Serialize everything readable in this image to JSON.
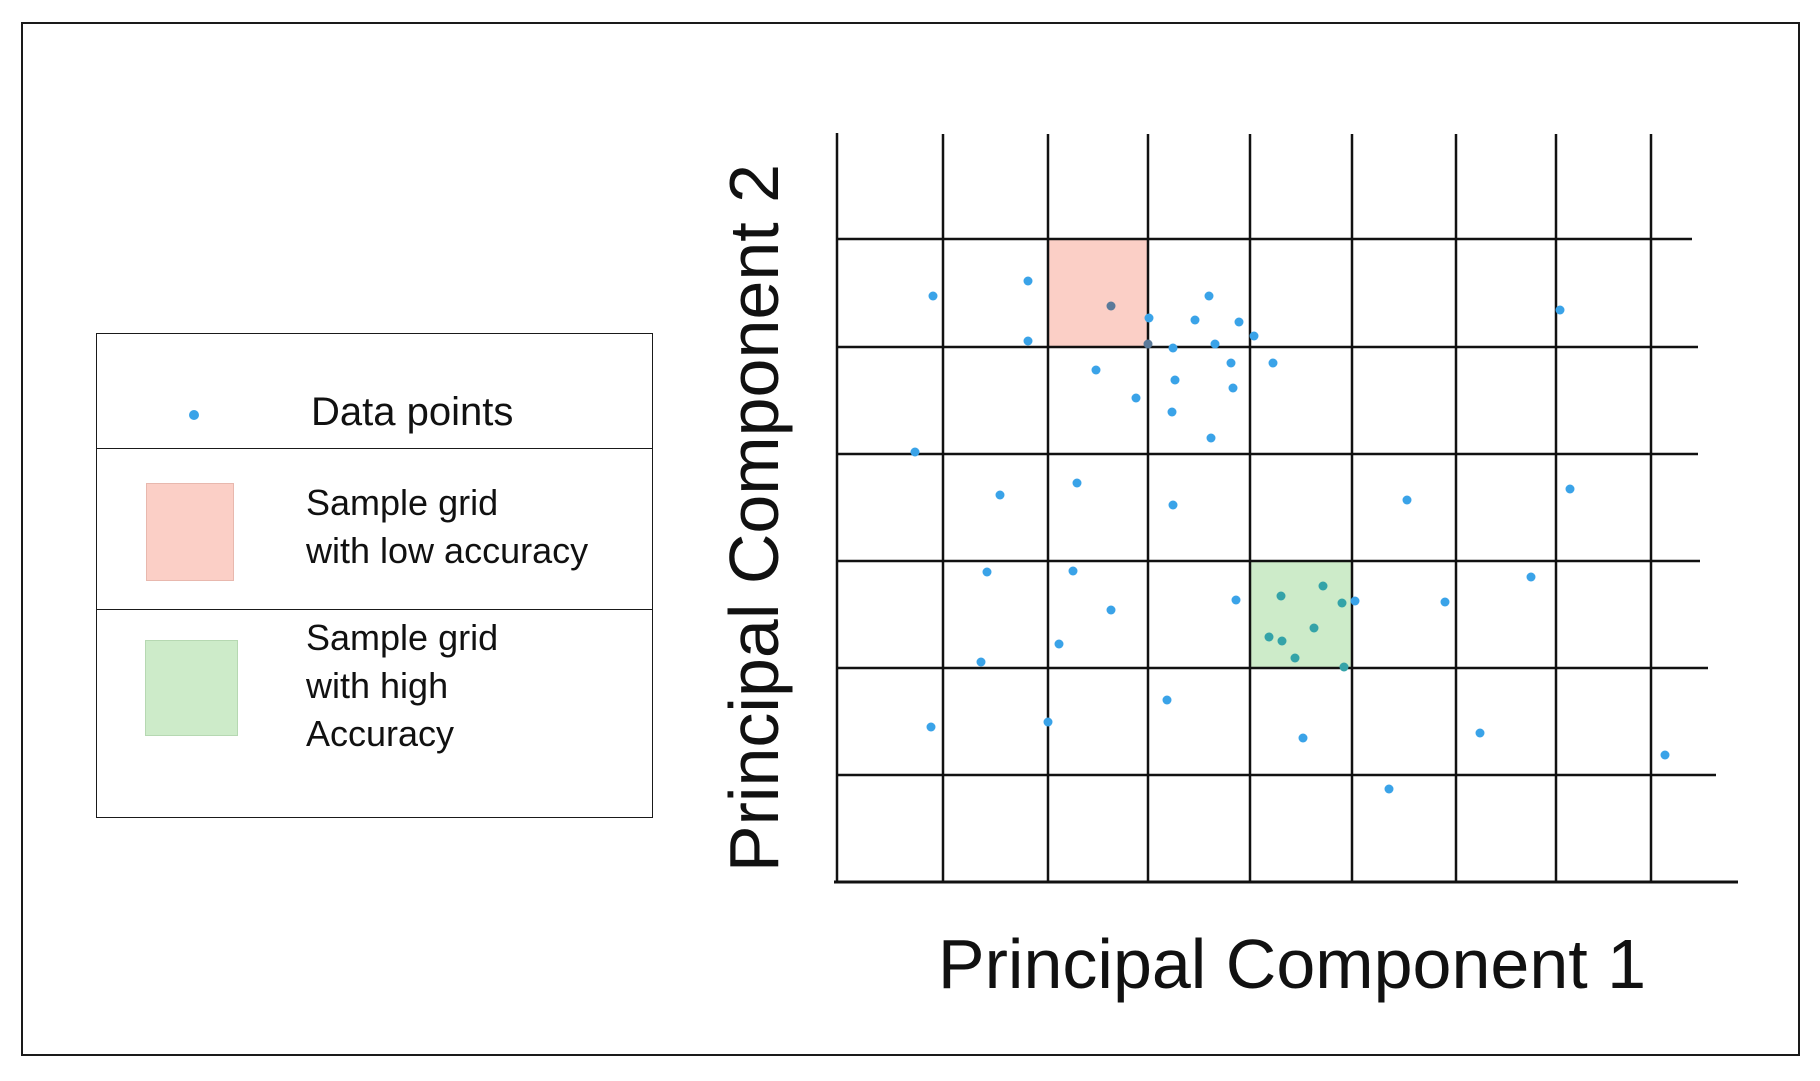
{
  "legend": {
    "data_points_label": "Data points",
    "low_label_line1": "Sample grid",
    "low_label_line2": "with low accuracy",
    "high_label_line1": "Sample grid",
    "high_label_line2": "with high",
    "high_label_line3": "Accuracy"
  },
  "axes": {
    "x_label": "Principal Component 1",
    "y_label": "Principal Component 2"
  },
  "colors": {
    "point": "#3aa3e8",
    "low_accuracy": "#fbcfc6",
    "high_accuracy": "#cdebc9",
    "grid": "#111111"
  },
  "grid": {
    "columns": 8,
    "rows": 6,
    "low_accuracy_cell": {
      "col": 2,
      "row": 0
    },
    "high_accuracy_cell": {
      "col": 4,
      "row": 3
    }
  }
}
